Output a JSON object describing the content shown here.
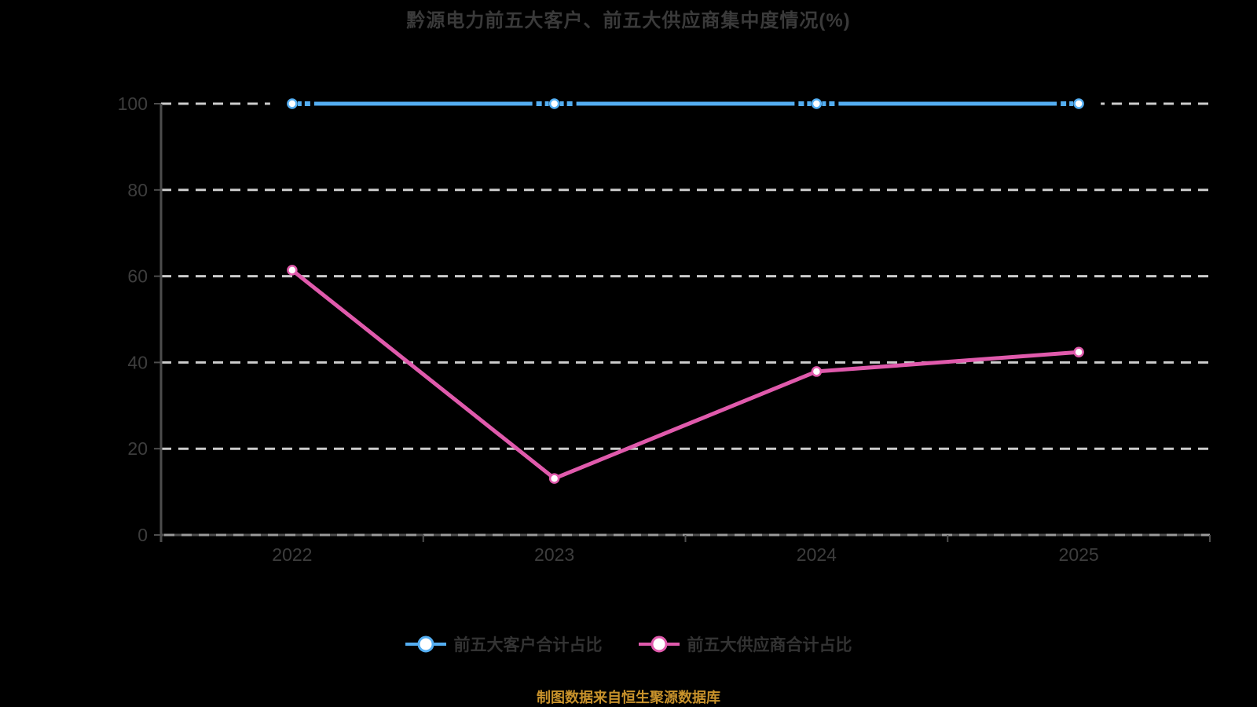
{
  "colors": {
    "background": "#000000",
    "title_text": "#3a3a3a",
    "axis_label_text": "#3d3d3d",
    "axis_line": "#4d4d4d",
    "gridline": "#cccccc",
    "zero_line_dash": "#9a9a9a",
    "legend_text": "#333333",
    "source_text": "#c8922b",
    "marker_fill": "#ffffff"
  },
  "chart_data": {
    "type": "line",
    "title": "黔源电力前五大客户、前五大供应商集中度情况(%)",
    "categories": [
      "2022",
      "2023",
      "2024",
      "2025"
    ],
    "series": [
      {
        "name": "前五大客户合计占比",
        "color": "#54aef2",
        "values": [
          100,
          100,
          100,
          100
        ],
        "marker": "circle-white-fill",
        "marker_gap_dashes": true
      },
      {
        "name": "前五大供应商合计占比",
        "color": "#e05aac",
        "values": [
          61.4,
          13.1,
          37.9,
          42.4
        ],
        "marker": "circle-white-fill",
        "marker_gap_dashes": false
      }
    ],
    "xlabel": "",
    "ylabel": "",
    "ylim": [
      0,
      100
    ],
    "yticks": [
      0,
      20,
      40,
      60,
      80,
      100
    ],
    "grid": "horizontal-dashed-white",
    "legend_position": "bottom",
    "source_note": "制图数据来自恒生聚源数据库"
  }
}
